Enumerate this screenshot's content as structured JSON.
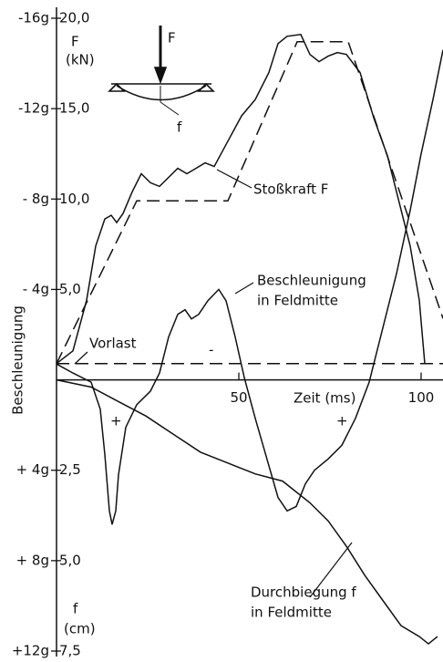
{
  "chart_data": {
    "type": "line",
    "x_label": "Zeit (ms)",
    "y_label": "Beschleunigung",
    "y2_label": [
      "F",
      "(kN)"
    ],
    "y3_label": [
      "f",
      "(cm)"
    ],
    "xlim": [
      0,
      106
    ],
    "xticks": [
      50,
      100
    ],
    "ylim": [
      -16,
      12
    ],
    "yticks": [
      {
        "value": -16,
        "label": "-16g"
      },
      {
        "value": -12,
        "label": "-12g"
      },
      {
        "value": -8,
        "label": "- 8g"
      },
      {
        "value": -4,
        "label": "- 4g"
      },
      {
        "value": 4,
        "label": "+ 4g"
      },
      {
        "value": 8,
        "label": "+ 8g"
      },
      {
        "value": 12,
        "label": "+12g"
      }
    ],
    "y2lim": [
      -15,
      20
    ],
    "y2ticks": [
      {
        "value": 20,
        "label": "20,0"
      },
      {
        "value": 15,
        "label": "15,0"
      },
      {
        "value": 10,
        "label": "10,0"
      },
      {
        "value": 5,
        "label": "5,0"
      }
    ],
    "y3lim": [
      -10,
      7.5
    ],
    "y3ticks": [
      {
        "value": 2.5,
        "label": "2,5"
      },
      {
        "value": 5,
        "label": "5,0"
      },
      {
        "value": 7.5,
        "label": "7,5"
      }
    ],
    "color": "#111111",
    "series": [
      {
        "name": "Stoßkraft F",
        "axis": "y2",
        "style": "solid",
        "x": [
          0,
          4.5,
          8.25,
          10.75,
          13.25,
          15,
          16.5,
          18.25,
          20.75,
          23.25,
          25.75,
          28.25,
          30.75,
          33.25,
          35.75,
          38.25,
          40.75,
          43.25,
          47,
          50.75,
          54.5,
          58.25,
          60.75,
          63.25,
          67,
          69.5,
          72,
          74.5,
          77,
          79.5,
          83.25,
          87,
          90.75,
          94.5,
          97,
          99.5,
          101
        ],
        "values": [
          0.9,
          1.6,
          4.4,
          7.4,
          8.9,
          9.1,
          8.7,
          9.2,
          10.4,
          11.4,
          10.9,
          10.7,
          11.2,
          11.7,
          11.4,
          11.7,
          12.0,
          11.8,
          13.2,
          14.6,
          15.5,
          17.0,
          18.6,
          19.0,
          19.1,
          18.0,
          17.6,
          17.9,
          18.1,
          18.0,
          17.0,
          14.5,
          12.4,
          9.4,
          7.4,
          4.4,
          0.9
        ]
      },
      {
        "axis": "y2",
        "style": "dashed",
        "x": [
          0,
          22,
          47,
          66,
          80,
          106
        ],
        "values": [
          0.9,
          9.9,
          9.9,
          18.7,
          18.7,
          3.4
        ]
      },
      {
        "name": "Vorlast",
        "axis": "y2",
        "style": "dashed",
        "x": [
          0,
          106
        ],
        "values": [
          0.9,
          0.9
        ]
      },
      {
        "name": "Beschleunigung",
        "axis": "y",
        "style": "solid",
        "x": [
          0,
          4.5,
          9.5,
          12,
          13.25,
          14.5,
          15.25,
          16.25,
          17,
          19,
          22,
          25.75,
          28.25,
          30.75,
          33.25,
          35.25,
          37,
          39,
          41.5,
          44.5,
          46.5,
          49,
          51.5,
          54.5,
          58.25,
          60.75,
          63.25,
          65.75,
          68.25,
          70.75,
          74.5,
          78.25,
          82,
          85.75,
          89.5,
          93.25,
          97,
          100,
          103.25,
          106
        ],
        "values": [
          -0.7,
          -0.3,
          0.1,
          1.3,
          3.3,
          5.8,
          6.4,
          5.8,
          4.2,
          2.1,
          1.1,
          0.5,
          -0.3,
          -1.9,
          -2.9,
          -3.1,
          -2.7,
          -2.9,
          -3.5,
          -4.0,
          -3.5,
          -1.9,
          -0.1,
          1.7,
          3.8,
          5.2,
          5.8,
          5.6,
          4.6,
          4.0,
          3.5,
          2.9,
          1.7,
          0.1,
          -2.3,
          -4.7,
          -7.5,
          -10.0,
          -12.4,
          -14.6
        ]
      },
      {
        "name": "Durchbiegung f",
        "axis": "y3",
        "style": "solid",
        "x": [
          0,
          9.5,
          17,
          24.5,
          32,
          39.5,
          47,
          54.5,
          62,
          69.5,
          74.5,
          79.5,
          84.5,
          89.5,
          94.5,
          99.5,
          102,
          104.5
        ],
        "values": [
          0,
          0.2,
          0.6,
          1.0,
          1.5,
          2.0,
          2.3,
          2.6,
          2.8,
          3.4,
          3.9,
          4.6,
          5.4,
          6.1,
          6.8,
          7.1,
          7.3,
          7.1
        ]
      }
    ],
    "annotations": [
      "in Feldmitte",
      "in Feldmitte",
      "-",
      "+",
      "+",
      "F",
      "f"
    ]
  }
}
